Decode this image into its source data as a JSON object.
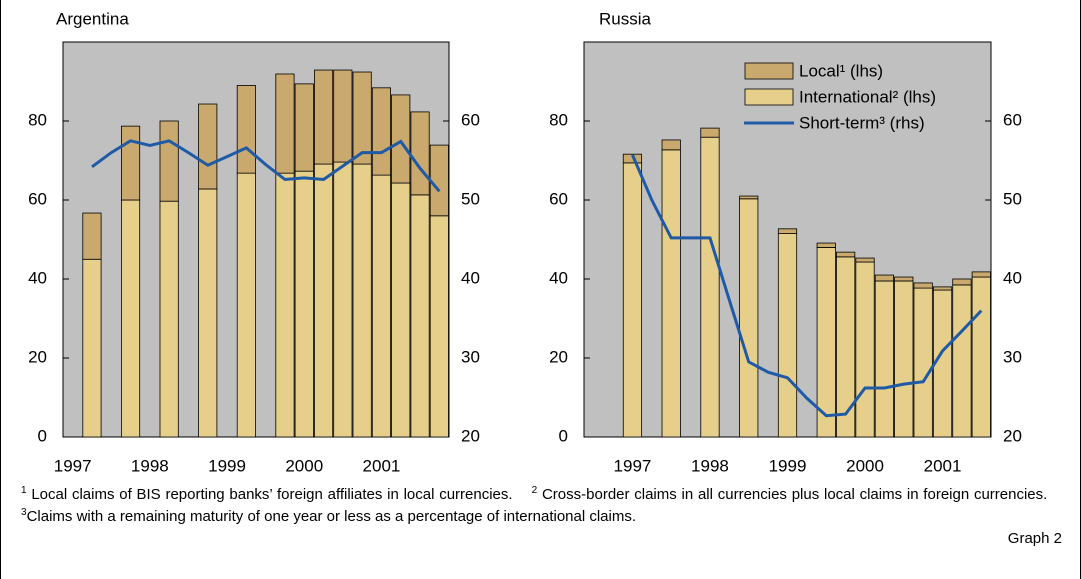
{
  "chart_data": [
    {
      "type": "bar",
      "title": "Argentina",
      "categories": [
        "1997",
        null,
        null,
        null,
        "1998",
        null,
        null,
        null,
        "1999",
        null,
        null,
        null,
        "2000",
        null,
        null,
        null,
        "2001",
        null,
        null,
        null
      ],
      "series": [
        {
          "color": "#c9a96e",
          "values": [
            null,
            11.7,
            null,
            18.7,
            null,
            20.3,
            null,
            21.5,
            null,
            22.2,
            null,
            25.1,
            22.1,
            23.8,
            23.3,
            23.3,
            22.1,
            22.3,
            21,
            17.9
          ]
        },
        {
          "color": "#e6cf8b",
          "values": [
            null,
            45,
            null,
            60,
            null,
            59.7,
            null,
            62.8,
            null,
            66.8,
            null,
            66.8,
            67.3,
            69.1,
            69.6,
            69.1,
            66.3,
            64.3,
            61.3,
            56
          ]
        },
        {
          "type": "line",
          "axis": "y2",
          "color": "#1f5aa6",
          "values": [
            null,
            54.2,
            56,
            57.5,
            56.9,
            57.5,
            56,
            54.4,
            55.5,
            56.6,
            54.5,
            52.6,
            52.8,
            52.6,
            54.3,
            56,
            56,
            57.4,
            54,
            51.1
          ]
        }
      ],
      "ylim": [
        0,
        100
      ],
      "yticks": [
        0,
        20,
        40,
        60,
        80
      ],
      "y2lim": [
        20,
        70
      ],
      "y2ticks": [
        20,
        30,
        40,
        50,
        60
      ],
      "background": "#c0c0c0"
    },
    {
      "type": "bar",
      "title": "Russia",
      "categories": [
        null,
        null,
        "1997",
        null,
        null,
        null,
        "1998",
        null,
        null,
        null,
        "1999",
        null,
        null,
        null,
        "2000",
        null,
        null,
        null,
        "2001",
        null,
        null
      ],
      "series": [
        {
          "name": "Local¹ (lhs)",
          "color": "#c9a96e",
          "values": [
            null,
            null,
            2.2,
            null,
            2.5,
            null,
            2.3,
            null,
            0.7,
            null,
            1.2,
            null,
            1.1,
            1.2,
            1.0,
            1.5,
            1.0,
            1.3,
            0.8,
            1.5,
            1.3
          ]
        },
        {
          "name": "International² (lhs)",
          "color": "#e6cf8b",
          "values": [
            null,
            null,
            69.4,
            null,
            72.7,
            null,
            75.9,
            null,
            60.3,
            null,
            51.5,
            null,
            48,
            45.6,
            44.3,
            39.5,
            39.5,
            37.7,
            37.2,
            38.5,
            40.5
          ]
        },
        {
          "name": "Short-term³ (rhs)",
          "type": "line",
          "axis": "y2",
          "color": "#1f5aa6",
          "values": [
            null,
            null,
            55.7,
            50,
            45.2,
            45.2,
            45.2,
            37.3,
            29.5,
            28.2,
            27.5,
            24.9,
            22.7,
            22.9,
            26.2,
            26.2,
            26.7,
            27,
            30.9,
            33.4,
            36
          ]
        }
      ],
      "ylim": [
        0,
        100
      ],
      "yticks": [
        0,
        20,
        40,
        60,
        80
      ],
      "y2lim": [
        20,
        70
      ],
      "y2ticks": [
        20,
        30,
        40,
        50,
        60
      ],
      "legend": "upper right",
      "background": "#c0c0c0"
    }
  ],
  "footnotes": [
    {
      "mark": "1",
      "text": " Local claims of BIS reporting banks’ foreign affiliates in local currencies."
    },
    {
      "mark": "2",
      "text": " Cross-border claims in all currencies plus local claims in foreign currencies."
    },
    {
      "mark": "3",
      "text": "Claims with a remaining maturity of one year or less as a percentage of international claims."
    }
  ],
  "graph_label": "Graph 2"
}
